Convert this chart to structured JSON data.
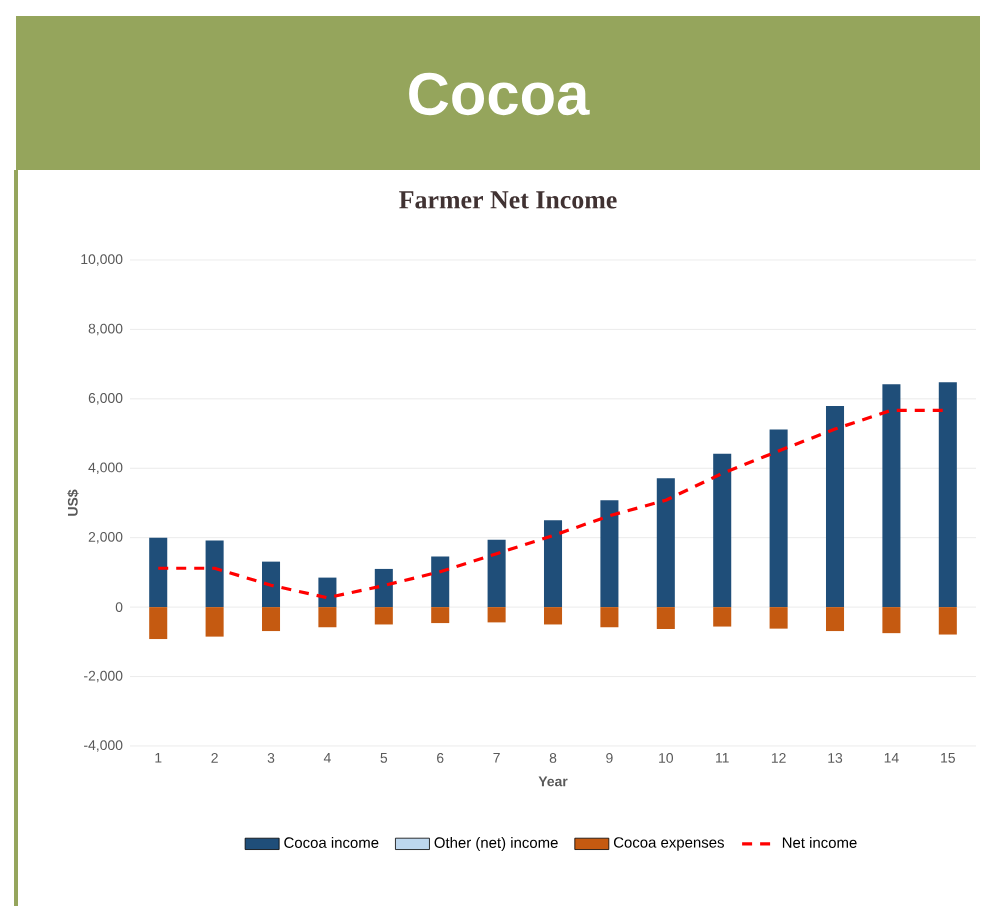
{
  "chart_data": {
    "type": "bar",
    "title": "Cocoa",
    "subtitle": "Farmer Net Income",
    "xlabel": "Year",
    "ylabel": "US$",
    "categories": [
      "1",
      "2",
      "3",
      "4",
      "5",
      "6",
      "7",
      "8",
      "9",
      "10",
      "11",
      "12",
      "13",
      "14",
      "15"
    ],
    "stacked": true,
    "series": [
      {
        "name": "Cocoa income",
        "color": "#1f4e79",
        "values": [
          2000,
          1920,
          1310,
          850,
          1100,
          1460,
          1940,
          2500,
          3080,
          3710,
          4420,
          5120,
          5790,
          6420,
          6480
        ]
      },
      {
        "name": "Other (net) income",
        "color": "#bdd7ee",
        "values": [
          0,
          0,
          0,
          0,
          0,
          0,
          0,
          0,
          0,
          0,
          0,
          0,
          0,
          0,
          0
        ]
      },
      {
        "name": "Cocoa expenses",
        "color": "#c55a11",
        "values": [
          -920,
          -850,
          -690,
          -580,
          -500,
          -460,
          -440,
          -500,
          -580,
          -630,
          -560,
          -620,
          -690,
          -750,
          -790
        ]
      },
      {
        "name": "Net income",
        "type": "line",
        "color": "#ff0000",
        "line_style": "dashed",
        "marker": "none",
        "values": [
          1120,
          1120,
          630,
          270,
          620,
          1020,
          1540,
          2060,
          2630,
          3080,
          3850,
          4500,
          5130,
          5670,
          5670
        ]
      }
    ],
    "ylim": [
      -4000,
      10000
    ],
    "yticks": [
      {
        "value": -4000,
        "label": "-4,000"
      },
      {
        "value": -2000,
        "label": "-2,000"
      },
      0,
      {
        "value": 2000,
        "label": "2,000"
      },
      {
        "value": 4000,
        "label": "4,000"
      },
      {
        "value": 6000,
        "label": "6,000"
      },
      {
        "value": 8000,
        "label": "8,000"
      },
      {
        "value": 10000,
        "label": "10,000"
      }
    ],
    "grid": "y",
    "legend": "bottom"
  }
}
